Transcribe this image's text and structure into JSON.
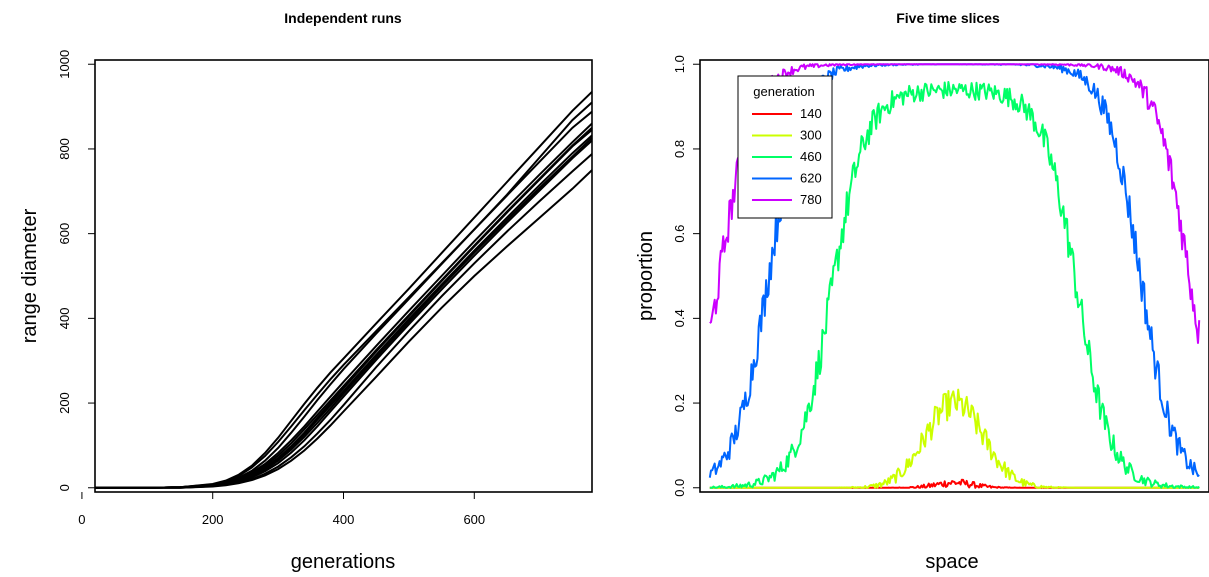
{
  "chart_data": [
    {
      "type": "line",
      "title": "Independent runs",
      "xlabel": "generations",
      "ylabel": "range diameter",
      "xlim": [
        20,
        780
      ],
      "ylim": [
        -10,
        1010
      ],
      "xticks": [
        0,
        200,
        400,
        600
      ],
      "yticks": [
        0,
        200,
        400,
        600,
        800,
        1000
      ],
      "grid": false,
      "color": "#000000",
      "x": [
        20,
        100,
        150,
        200,
        220,
        240,
        260,
        280,
        300,
        320,
        340,
        360,
        380,
        400,
        450,
        500,
        550,
        600,
        650,
        700,
        750,
        780
      ],
      "series": [
        {
          "values": [
            0,
            0,
            1,
            8,
            15,
            28,
            48,
            75,
            108,
            145,
            183,
            220,
            256,
            290,
            370,
            450,
            530,
            610,
            690,
            770,
            850,
            888
          ]
        },
        {
          "values": [
            0,
            0,
            1,
            6,
            11,
            20,
            33,
            52,
            76,
            105,
            138,
            172,
            206,
            240,
            325,
            408,
            490,
            572,
            652,
            730,
            808,
            850
          ]
        },
        {
          "values": [
            0,
            0,
            1,
            5,
            9,
            16,
            27,
            43,
            64,
            90,
            120,
            153,
            187,
            222,
            308,
            392,
            475,
            555,
            632,
            708,
            782,
            826
          ]
        },
        {
          "values": [
            0,
            0,
            0,
            4,
            7,
            12,
            20,
            33,
            50,
            72,
            98,
            128,
            160,
            195,
            285,
            370,
            452,
            530,
            605,
            677,
            747,
            788
          ]
        },
        {
          "values": [
            0,
            0,
            1,
            5,
            10,
            18,
            30,
            48,
            70,
            98,
            130,
            165,
            200,
            235,
            322,
            405,
            488,
            570,
            650,
            728,
            806,
            845
          ]
        },
        {
          "values": [
            0,
            0,
            1,
            7,
            13,
            24,
            40,
            64,
            94,
            130,
            168,
            207,
            244,
            280,
            364,
            446,
            528,
            610,
            692,
            780,
            868,
            910
          ]
        },
        {
          "values": [
            0,
            0,
            1,
            9,
            17,
            31,
            52,
            82,
            118,
            158,
            198,
            236,
            272,
            305,
            388,
            470,
            554,
            638,
            722,
            806,
            890,
            935
          ]
        },
        {
          "values": [
            0,
            0,
            0,
            4,
            8,
            14,
            24,
            39,
            58,
            83,
            112,
            145,
            180,
            215,
            302,
            386,
            468,
            548,
            626,
            702,
            778,
            820
          ]
        },
        {
          "values": [
            0,
            0,
            0,
            3,
            6,
            11,
            18,
            29,
            44,
            64,
            88,
            116,
            147,
            180,
            262,
            345,
            425,
            500,
            570,
            638,
            706,
            750
          ]
        },
        {
          "values": [
            0,
            0,
            1,
            6,
            12,
            22,
            36,
            56,
            82,
            112,
            145,
            180,
            215,
            250,
            335,
            418,
            500,
            582,
            662,
            740,
            816,
            860
          ]
        },
        {
          "values": [
            0,
            0,
            1,
            5,
            10,
            17,
            29,
            46,
            68,
            95,
            126,
            160,
            194,
            228,
            314,
            398,
            480,
            560,
            638,
            715,
            790,
            832
          ]
        }
      ]
    },
    {
      "type": "line",
      "title": "Five time slices",
      "xlabel": "space",
      "ylabel": "proportion",
      "xlim": [
        -0.02,
        1.02
      ],
      "ylim": [
        -0.01,
        1.01
      ],
      "yticks": [
        0.0,
        0.2,
        0.4,
        0.6,
        0.8,
        1.0
      ],
      "ytick_labels": [
        "0.0",
        "0.2",
        "0.4",
        "0.6",
        "0.8",
        "1.0"
      ],
      "xticks_shown": false,
      "grid": false,
      "legend": {
        "title": "generation",
        "position": "top-left"
      },
      "series": [
        {
          "name": "140",
          "color": "#ff0000",
          "peak": 0.012,
          "center": 0.5,
          "half_width": 0.08
        },
        {
          "name": "300",
          "color": "#ccff00",
          "peak": 0.2,
          "center": 0.5,
          "half_width": 0.13
        },
        {
          "name": "460",
          "color": "#00ff66",
          "peak": 0.94,
          "center": 0.5,
          "half_width": 0.25
        },
        {
          "name": "620",
          "color": "#0066ff",
          "peak": 1.0,
          "center": 0.5,
          "half_width": 0.38
        },
        {
          "name": "780",
          "color": "#cc00ff",
          "peak": 1.0,
          "center": 0.5,
          "half_width": 0.48
        }
      ]
    }
  ]
}
